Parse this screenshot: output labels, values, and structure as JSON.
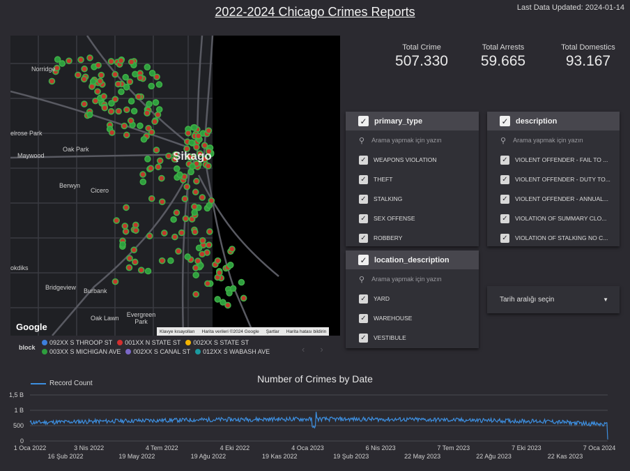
{
  "header": {
    "title": "2022-2024 Chicago Crimes Reports",
    "last_updated": "Last Data Updated: 2024-01-14"
  },
  "map": {
    "city_label": "Şikago",
    "places": [
      "Norridge",
      "Oak Park",
      "Maywood",
      "Berwyn",
      "Cicero",
      "Bridgeview",
      "Burbank",
      "Oak Lawn",
      "Evergreen Park",
      "elrose Park",
      "okdiks"
    ],
    "google_logo": "Google",
    "attribution": [
      "Klavye kısayolları",
      "Harita verileri ©2024 Google",
      "Şartlar",
      "Harita hatası bildirin"
    ]
  },
  "legend": {
    "label": "block",
    "items": [
      {
        "name": "092XX S THROOP ST",
        "color": "#3d7fdc"
      },
      {
        "name": "001XX N STATE ST",
        "color": "#d32f2f"
      },
      {
        "name": "002XX S STATE ST",
        "color": "#f5b400"
      },
      {
        "name": "003XX S MICHIGAN AVE",
        "color": "#2e9e3e"
      },
      {
        "name": "002XX S CANAL ST",
        "color": "#7b68c8"
      },
      {
        "name": "012XX S WABASH AVE",
        "color": "#1b9aa0"
      }
    ],
    "pager_prev": "‹",
    "pager_next": "›"
  },
  "kpis": [
    {
      "label": "Total Crime",
      "value": "507.330"
    },
    {
      "label": "Total Arrests",
      "value": "59.665"
    },
    {
      "label": "Total Domestics",
      "value": "93.167"
    }
  ],
  "filters": {
    "search_placeholder": "Arama yapmak için yazın",
    "primary_type": {
      "title": "primary_type",
      "options": [
        "WEAPONS VIOLATION",
        "THEFT",
        "STALKING",
        "SEX OFFENSE",
        "ROBBERY"
      ]
    },
    "description": {
      "title": "description",
      "options": [
        "VIOLENT OFFENDER - FAIL TO ...",
        "VIOLENT OFFENDER - DUTY TO...",
        "VIOLENT OFFENDER - ANNUAL...",
        "VIOLATION OF SUMMARY CLO...",
        "VIOLATION OF STALKING NO C..."
      ]
    },
    "location_description": {
      "title": "location_description",
      "options": [
        "YARD",
        "WAREHOUSE",
        "VESTIBULE"
      ]
    }
  },
  "date_range": {
    "label": "Tarih aralığı seçin"
  },
  "icons": {
    "checkbox": "check-icon",
    "search": "search-icon",
    "dropdown": "caret-down-icon"
  },
  "chart_data": {
    "type": "line",
    "title": "Number of Crimes by Date",
    "series": [
      {
        "name": "Record Count",
        "color": "#3d8fe0"
      }
    ],
    "y_ticks": [
      "0",
      "500",
      "1 B",
      "1,5 B"
    ],
    "ylim": [
      0,
      1500
    ],
    "x_ticks_top": [
      "1 Oca 2022",
      "3 Nis 2022",
      "4 Tem 2022",
      "4 Eki 2022",
      "4 Oca 2023",
      "6 Nis 2023",
      "7 Tem 2023",
      "7 Eki 2023",
      "7 Oca 2024"
    ],
    "x_ticks_bottom": [
      "16 Şub 2022",
      "19 May 2022",
      "19 Ağu 2022",
      "19 Kas 2022",
      "19 Şub 2023",
      "22 May 2023",
      "22 Ağu 2023",
      "22 Kas 2023"
    ],
    "x_range": [
      "2022-01-01",
      "2024-01-14"
    ],
    "approx_daily_level": {
      "early_2022": 600,
      "mid_2022": 720,
      "2023": 700,
      "mid_2023": 750,
      "late_2023": 650,
      "final_day": 50
    },
    "grid": true,
    "legend_position": "top-left"
  }
}
